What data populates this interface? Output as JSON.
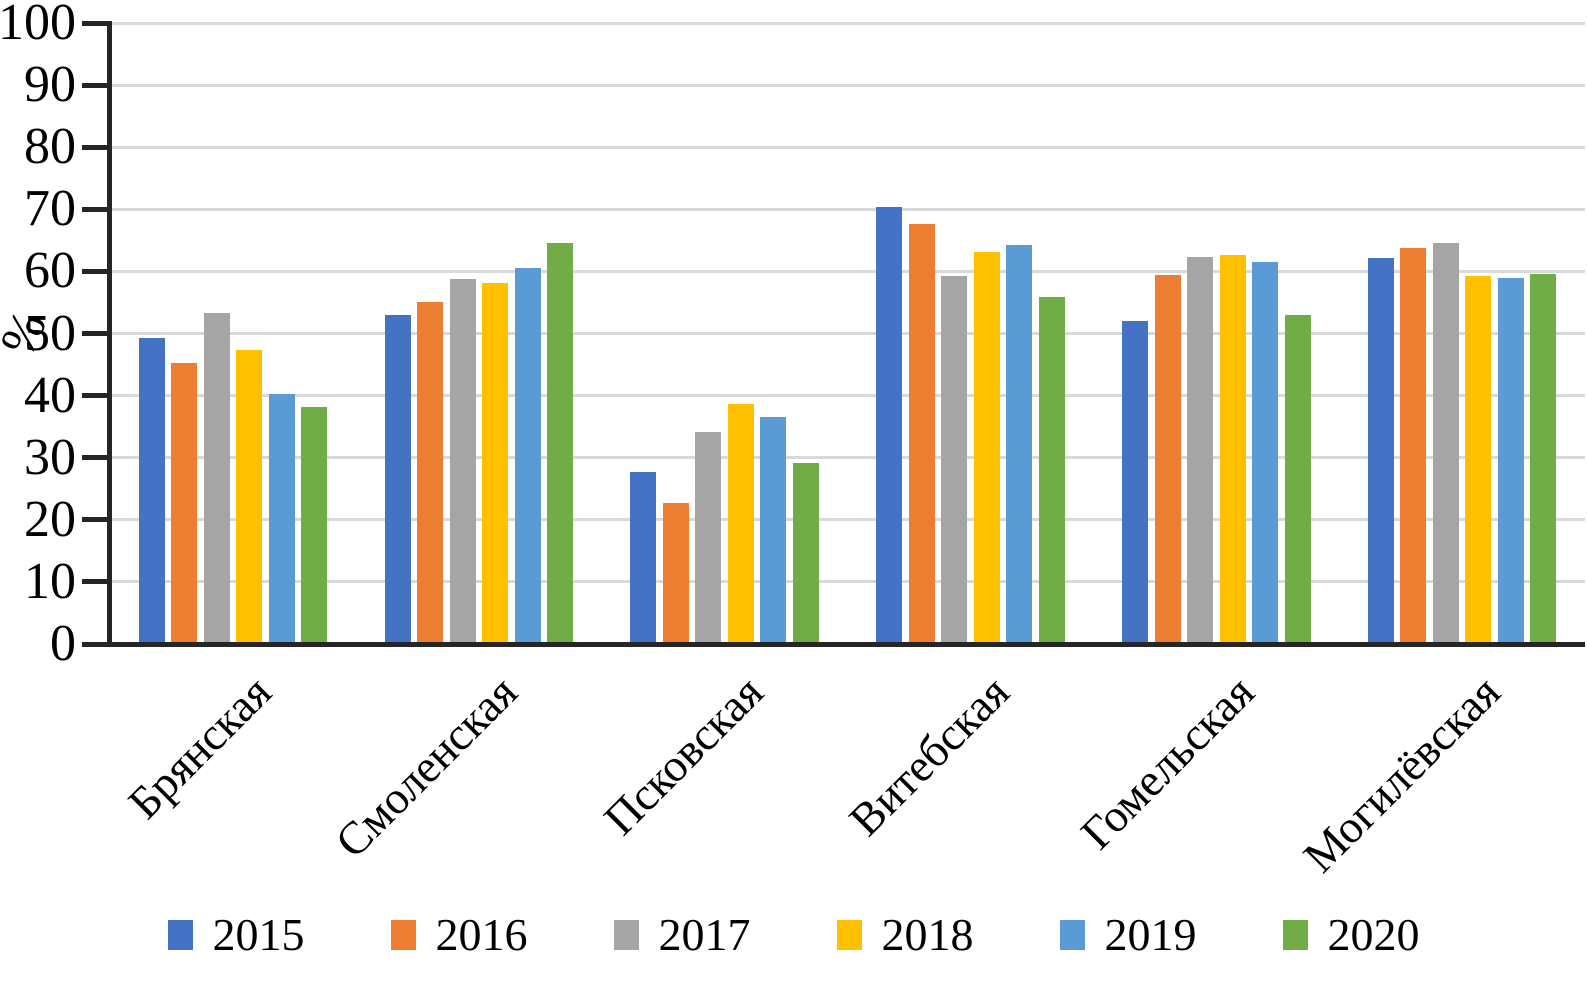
{
  "chart_data": {
    "type": "bar",
    "title": "",
    "ylabel": "%",
    "xlabel": "",
    "ylim": [
      0,
      100
    ],
    "ytick_step": 10,
    "yticks": [
      0,
      10,
      20,
      30,
      40,
      50,
      60,
      70,
      80,
      90,
      100
    ],
    "grid": "horizontal",
    "gridline_color": "#d9d9d9",
    "axis_color": "#262626",
    "legend_position": "bottom",
    "categories": [
      "Брянская",
      "Смоленская",
      "Псковская",
      "Витебская",
      "Гомельская",
      "Могилёвская"
    ],
    "series": [
      {
        "name": "2015",
        "color": "#4472C4",
        "values": [
          49.3,
          52.9,
          27.7,
          70.3,
          52.0,
          62.1
        ]
      },
      {
        "name": "2016",
        "color": "#ED7D31",
        "values": [
          45.3,
          55.1,
          22.7,
          67.7,
          59.4,
          63.8
        ]
      },
      {
        "name": "2017",
        "color": "#A5A5A5",
        "values": [
          53.3,
          58.8,
          34.1,
          59.3,
          62.3,
          64.5
        ]
      },
      {
        "name": "2018",
        "color": "#FFC000",
        "values": [
          47.3,
          58.2,
          38.6,
          63.1,
          62.7,
          59.3
        ]
      },
      {
        "name": "2019",
        "color": "#5B9BD5",
        "values": [
          40.2,
          60.6,
          36.5,
          64.2,
          61.5,
          58.9
        ]
      },
      {
        "name": "2020",
        "color": "#70AD47",
        "values": [
          38.2,
          64.5,
          29.1,
          55.8,
          53.0,
          59.6
        ]
      }
    ]
  }
}
